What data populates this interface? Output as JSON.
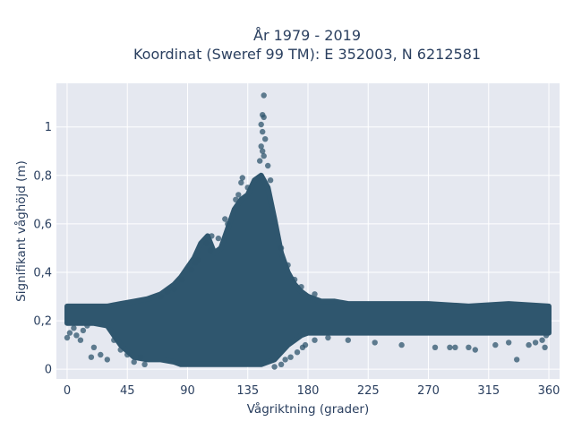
{
  "chart_data": {
    "type": "scatter",
    "title_line1": "År 1979 - 2019",
    "title_line2": "Koordinat (Sweref 99 TM): E 352003, N 6212581",
    "xlabel": "Vågriktning (grader)",
    "ylabel": "Signifikant våghöjd (m)",
    "xlim": [
      -8,
      368
    ],
    "ylim": [
      -0.04,
      1.18
    ],
    "x_ticks": [
      0,
      45,
      90,
      135,
      180,
      225,
      270,
      315,
      360
    ],
    "x_tick_labels": [
      "0",
      "45",
      "90",
      "135",
      "180",
      "225",
      "270",
      "315",
      "360"
    ],
    "y_ticks": [
      0,
      0.2,
      0.4,
      0.6,
      0.8,
      1
    ],
    "y_tick_labels": [
      "0",
      "0,2",
      "0,4",
      "0,6",
      "0,8",
      "1"
    ],
    "grid": true,
    "marker_color": "#2f566e",
    "plot_bg": "#e5e8f0",
    "envelope": {
      "x": [
        0,
        10,
        20,
        30,
        40,
        50,
        60,
        70,
        80,
        85,
        90,
        95,
        100,
        105,
        110,
        115,
        120,
        125,
        130,
        135,
        140,
        145,
        150,
        155,
        160,
        165,
        170,
        175,
        180,
        190,
        200,
        210,
        225,
        250,
        270,
        300,
        330,
        360
      ],
      "y_max": [
        0.26,
        0.26,
        0.26,
        0.26,
        0.27,
        0.28,
        0.29,
        0.31,
        0.35,
        0.38,
        0.42,
        0.46,
        0.52,
        0.55,
        0.48,
        0.5,
        0.58,
        0.66,
        0.7,
        0.72,
        0.78,
        0.8,
        0.75,
        0.62,
        0.48,
        0.4,
        0.35,
        0.32,
        0.3,
        0.28,
        0.28,
        0.27,
        0.27,
        0.27,
        0.27,
        0.26,
        0.27,
        0.26
      ],
      "y_min": [
        0.19,
        0.19,
        0.19,
        0.18,
        0.1,
        0.05,
        0.04,
        0.04,
        0.03,
        0.02,
        0.02,
        0.02,
        0.02,
        0.02,
        0.02,
        0.02,
        0.02,
        0.02,
        0.02,
        0.02,
        0.02,
        0.02,
        0.03,
        0.04,
        0.07,
        0.1,
        0.12,
        0.14,
        0.15,
        0.15,
        0.15,
        0.15,
        0.15,
        0.15,
        0.15,
        0.15,
        0.15,
        0.15
      ]
    },
    "points": [
      [
        147,
        1.13
      ],
      [
        146,
        1.05
      ],
      [
        147,
        1.04
      ],
      [
        145,
        1.01
      ],
      [
        146,
        0.98
      ],
      [
        148,
        0.95
      ],
      [
        145,
        0.92
      ],
      [
        146,
        0.9
      ],
      [
        147,
        0.88
      ],
      [
        144,
        0.86
      ],
      [
        150,
        0.84
      ],
      [
        131,
        0.79
      ],
      [
        152,
        0.78
      ],
      [
        130,
        0.77
      ],
      [
        126,
        0.7
      ],
      [
        128,
        0.72
      ],
      [
        135,
        0.75
      ],
      [
        120,
        0.6
      ],
      [
        118,
        0.62
      ],
      [
        108,
        0.55
      ],
      [
        113,
        0.54
      ],
      [
        104,
        0.52
      ],
      [
        107,
        0.49
      ],
      [
        98,
        0.45
      ],
      [
        96,
        0.44
      ],
      [
        93,
        0.41
      ],
      [
        86,
        0.37
      ],
      [
        80,
        0.33
      ],
      [
        75,
        0.32
      ],
      [
        70,
        0.3
      ],
      [
        160,
        0.5
      ],
      [
        165,
        0.43
      ],
      [
        170,
        0.37
      ],
      [
        175,
        0.34
      ],
      [
        185,
        0.31
      ],
      [
        0,
        0.13
      ],
      [
        2,
        0.15
      ],
      [
        5,
        0.17
      ],
      [
        7,
        0.14
      ],
      [
        10,
        0.12
      ],
      [
        12,
        0.16
      ],
      [
        15,
        0.18
      ],
      [
        20,
        0.09
      ],
      [
        25,
        0.06
      ],
      [
        18,
        0.05
      ],
      [
        30,
        0.04
      ],
      [
        35,
        0.12
      ],
      [
        40,
        0.08
      ],
      [
        45,
        0.06
      ],
      [
        50,
        0.03
      ],
      [
        55,
        0.05
      ],
      [
        58,
        0.02
      ],
      [
        155,
        0.01
      ],
      [
        160,
        0.02
      ],
      [
        163,
        0.04
      ],
      [
        167,
        0.05
      ],
      [
        172,
        0.07
      ],
      [
        176,
        0.09
      ],
      [
        178,
        0.1
      ],
      [
        185,
        0.12
      ],
      [
        195,
        0.13
      ],
      [
        210,
        0.12
      ],
      [
        230,
        0.11
      ],
      [
        250,
        0.1
      ],
      [
        275,
        0.09
      ],
      [
        286,
        0.09
      ],
      [
        290,
        0.09
      ],
      [
        300,
        0.09
      ],
      [
        320,
        0.1
      ],
      [
        330,
        0.11
      ],
      [
        336,
        0.04
      ],
      [
        305,
        0.08
      ],
      [
        345,
        0.1
      ],
      [
        350,
        0.11
      ],
      [
        355,
        0.12
      ],
      [
        357,
        0.09
      ],
      [
        358,
        0.14
      ]
    ]
  }
}
